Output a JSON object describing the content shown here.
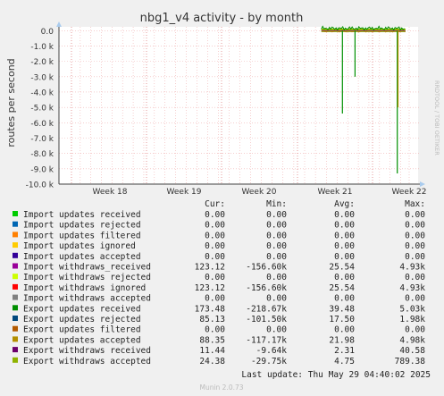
{
  "title": "nbg1_v4 activity - by month",
  "side_label": "RRDTOOL / TOBI OETIKER",
  "footer": "Munin 2.0.73",
  "last_update": "Last update: Thu May 29 04:40:02 2025",
  "legend_headers": [
    "Cur:",
    "Min:",
    "Avg:",
    "Max:"
  ],
  "legend": [
    {
      "name": "Import updates received",
      "color": "#00cc00",
      "cur": "0.00",
      "min": "0.00",
      "avg": "0.00",
      "max": "0.00"
    },
    {
      "name": "Import updates rejected",
      "color": "#0066b3",
      "cur": "0.00",
      "min": "0.00",
      "avg": "0.00",
      "max": "0.00"
    },
    {
      "name": "Import updates filtered",
      "color": "#ff8000",
      "cur": "0.00",
      "min": "0.00",
      "avg": "0.00",
      "max": "0.00"
    },
    {
      "name": "Import updates ignored",
      "color": "#ffcc00",
      "cur": "0.00",
      "min": "0.00",
      "avg": "0.00",
      "max": "0.00"
    },
    {
      "name": "Import updates accepted",
      "color": "#330099",
      "cur": "0.00",
      "min": "0.00",
      "avg": "0.00",
      "max": "0.00"
    },
    {
      "name": "Import withdraws_received",
      "color": "#990099",
      "cur": "123.12",
      "min": "-156.60k",
      "avg": "25.54",
      "max": "4.93k"
    },
    {
      "name": "Import withdraws rejected",
      "color": "#ccff00",
      "cur": "0.00",
      "min": "0.00",
      "avg": "0.00",
      "max": "0.00"
    },
    {
      "name": "Import withdraws ignored",
      "color": "#ff0000",
      "cur": "123.12",
      "min": "-156.60k",
      "avg": "25.54",
      "max": "4.93k"
    },
    {
      "name": "Import withdraws accepted",
      "color": "#808080",
      "cur": "0.00",
      "min": "0.00",
      "avg": "0.00",
      "max": "0.00"
    },
    {
      "name": "Export updates received",
      "color": "#008f00",
      "cur": "173.48",
      "min": "-218.67k",
      "avg": "39.48",
      "max": "5.03k"
    },
    {
      "name": "Export updates rejected",
      "color": "#00487d",
      "cur": "85.13",
      "min": "-101.50k",
      "avg": "17.50",
      "max": "1.98k"
    },
    {
      "name": "Export updates filtered",
      "color": "#b35a00",
      "cur": "0.00",
      "min": "0.00",
      "avg": "0.00",
      "max": "0.00"
    },
    {
      "name": "Export updates accepted",
      "color": "#b38f00",
      "cur": "88.35",
      "min": "-117.17k",
      "avg": "21.98",
      "max": "4.98k"
    },
    {
      "name": "Export withdraws received",
      "color": "#6b006b",
      "cur": "11.44",
      "min": "-9.64k",
      "avg": "2.31",
      "max": "40.58"
    },
    {
      "name": "Export withdraws accepted",
      "color": "#8fb300",
      "cur": "24.38",
      "min": "-29.75k",
      "avg": "4.75",
      "max": "789.38"
    }
  ],
  "chart_data": {
    "type": "line",
    "title": "nbg1_v4 activity - by month",
    "ylabel": "routes per second",
    "ylim": [
      -10000,
      500
    ],
    "yticks": [
      0,
      -1000,
      -2000,
      -3000,
      -4000,
      -5000,
      -6000,
      -7000,
      -8000,
      -9000,
      -10000
    ],
    "ytick_labels": [
      "0.0",
      "-1.0 k",
      "-2.0 k",
      "-3.0 k",
      "-4.0 k",
      "-5.0 k",
      "-6.0 k",
      "-7.0 k",
      "-8.0 k",
      "-9.0 k",
      "-10.0 k"
    ],
    "x_categories": [
      "Week 18",
      "Week 19",
      "Week 20",
      "Week 21",
      "Week 22"
    ],
    "grid": true,
    "data_range_weeks": [
      20.82,
      21.95
    ],
    "spikes": [
      {
        "week": 21.1,
        "value": -5400,
        "color": "#008f00"
      },
      {
        "week": 21.27,
        "value": -3000,
        "color": "#008f00"
      },
      {
        "week": 21.84,
        "value": -9300,
        "color": "#008f00"
      },
      {
        "week": 21.85,
        "value": -5000,
        "color": "#b38f00"
      }
    ]
  }
}
